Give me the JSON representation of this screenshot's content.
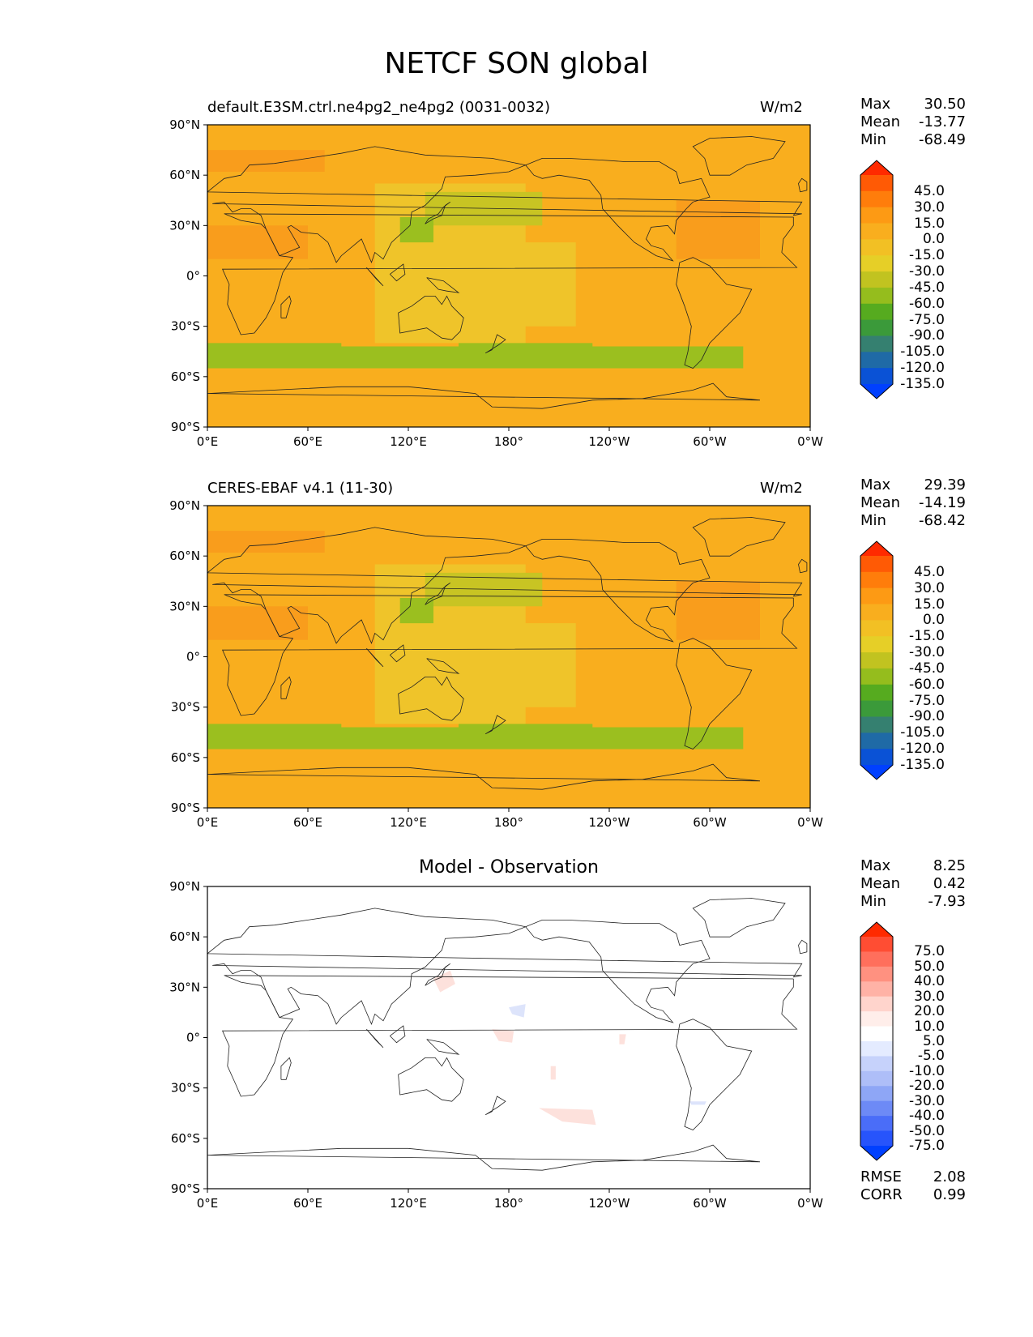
{
  "title": "NETCF SON global",
  "x_ticks": [
    "0°E",
    "60°E",
    "120°E",
    "180°",
    "120°W",
    "60°W",
    "0°W"
  ],
  "y_ticks": [
    "90°N",
    "60°N",
    "30°N",
    "0°",
    "30°S",
    "60°S",
    "90°S"
  ],
  "panels": [
    {
      "title_left": "default.E3SM.ctrl.ne4pg2_ne4pg2 (0031-0032)",
      "units": "W/m2",
      "stats": [
        {
          "label": "Max",
          "value": "30.50"
        },
        {
          "label": "Mean",
          "value": "-13.77"
        },
        {
          "label": "Min",
          "value": "-68.49"
        }
      ],
      "colorbar_levels": [
        "45.0",
        "30.0",
        "15.0",
        "0.0",
        "-15.0",
        "-30.0",
        "-45.0",
        "-60.0",
        "-75.0",
        "-90.0",
        "-105.0",
        "-120.0",
        "-135.0"
      ]
    },
    {
      "title_left": "CERES-EBAF v4.1 (11-30)",
      "units": "W/m2",
      "stats": [
        {
          "label": "Max",
          "value": "29.39"
        },
        {
          "label": "Mean",
          "value": "-14.19"
        },
        {
          "label": "Min",
          "value": "-68.42"
        }
      ],
      "colorbar_levels": [
        "45.0",
        "30.0",
        "15.0",
        "0.0",
        "-15.0",
        "-30.0",
        "-45.0",
        "-60.0",
        "-75.0",
        "-90.0",
        "-105.0",
        "-120.0",
        "-135.0"
      ]
    },
    {
      "title_center": "Model - Observation",
      "stats": [
        {
          "label": "Max",
          "value": "8.25"
        },
        {
          "label": "Mean",
          "value": "0.42"
        },
        {
          "label": "Min",
          "value": "-7.93"
        }
      ],
      "colorbar_levels": [
        "75.0",
        "50.0",
        "40.0",
        "30.0",
        "20.0",
        "10.0",
        "5.0",
        "-5.0",
        "-10.0",
        "-20.0",
        "-30.0",
        "-40.0",
        "-50.0",
        "-75.0"
      ],
      "extra_stats": [
        {
          "label": "RMSE",
          "value": "2.08"
        },
        {
          "label": "CORR",
          "value": "0.99"
        }
      ]
    }
  ],
  "colors": {
    "field_base": "#f9ae1e",
    "field_mid": "#efc42a",
    "field_low": "#c8c423",
    "field_green": "#9bbf1f",
    "field_warm": "#f99d1c",
    "cb_main": [
      "#ff2a00",
      "#ff5a05",
      "#ff7d0b",
      "#fd9a14",
      "#f9ae1e",
      "#f2c024",
      "#e6cf27",
      "#c1c320",
      "#95bd1d",
      "#56ab1f",
      "#3b9a3a",
      "#358070",
      "#1f6aa6",
      "#0a52d6",
      "#0040ff"
    ],
    "cb_diff": [
      "#ff2a00",
      "#ff4d33",
      "#ff6f5c",
      "#ff9180",
      "#ffb2a6",
      "#ffd4cc",
      "#ffeeea",
      "#ffffff",
      "#e4ebff",
      "#c6d2fb",
      "#aebef8",
      "#8ea6f6",
      "#6d8af6",
      "#4a6df8",
      "#2754fb",
      "#0040ff"
    ]
  }
}
